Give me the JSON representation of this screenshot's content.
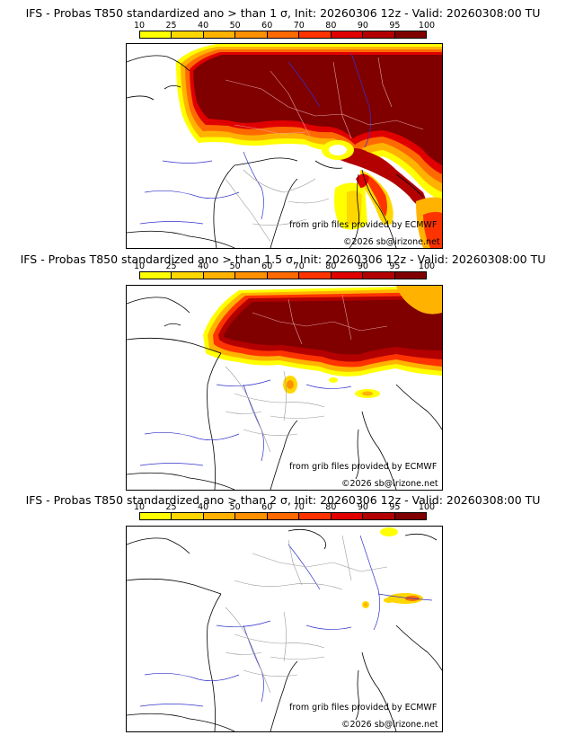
{
  "legend": {
    "ticks": [
      "10",
      "25",
      "40",
      "50",
      "60",
      "70",
      "80",
      "90",
      "95",
      "100"
    ],
    "colors": [
      "#ffff00",
      "#ffd700",
      "#ffb300",
      "#ff9100",
      "#ff6a00",
      "#ff3300",
      "#e00000",
      "#b30000",
      "#800000"
    ]
  },
  "panels": [
    {
      "title": "IFS - Probas T850  standardized ano > than 1 σ, Init: 20260306 12z - Valid: 20260308:00 TU",
      "source": "from grib files provided by ECMWF",
      "copyright": "©2026 sb@irizone.net"
    },
    {
      "title": "IFS - Probas T850  standardized ano > than 1.5 σ, Init: 20260306 12z - Valid: 20260308:00 TU",
      "source": "from grib files provided by ECMWF",
      "copyright": "©2026 sb@irizone.net"
    },
    {
      "title": "IFS - Probas T850  standardized ano > than 2 σ, Init: 20260306 12z - Valid: 20260308:00 TU",
      "source": "from grib files provided by ECMWF",
      "copyright": "©2026 sb@irizone.net"
    }
  ]
}
